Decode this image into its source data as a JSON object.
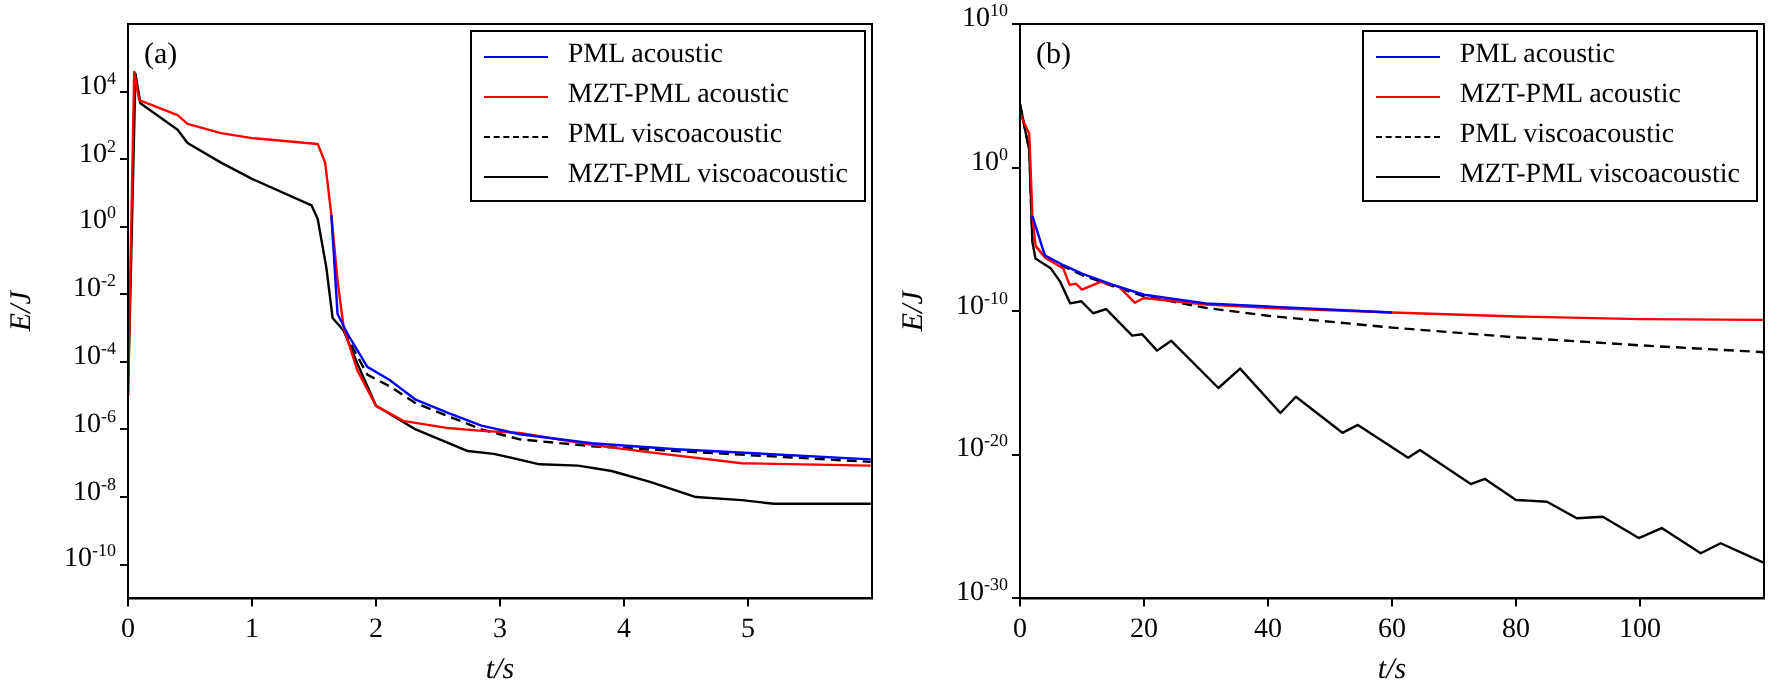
{
  "chart_data": [
    {
      "type": "line",
      "xlabel": "t/s",
      "ylabel": "E/J",
      "annotations": [
        "(a)"
      ],
      "legend": "top right",
      "log": "y",
      "xlim": [
        0,
        6
      ],
      "xticks": [
        0,
        1,
        2,
        3,
        4,
        5
      ],
      "ylim": [
        1e-11,
        1000000.0
      ],
      "yticks": [
        {
          "value": 1e-10,
          "label": "10$^{-10}$"
        },
        {
          "value": 1e-08,
          "label": "10$^{-8}$"
        },
        {
          "value": 1e-06,
          "label": "10$^{-6}$"
        },
        {
          "value": 0.0001,
          "label": "10$^{-4}$"
        },
        {
          "value": 0.01,
          "label": "10$^{-2}$"
        },
        {
          "value": 1,
          "label": "10$^{0}$"
        },
        {
          "value": 100,
          "label": "10$^{2}$"
        },
        {
          "value": 10000,
          "label": "10$^{4}$"
        }
      ],
      "series": [
        {
          "name": "PML acoustic",
          "color": "#0000ff",
          "x": [
            1.64,
            1.69,
            1.77,
            1.93,
            2.11,
            2.32,
            2.58,
            2.85,
            3.16,
            3.74,
            4.42,
            5.99
          ],
          "values": [
            2.2,
            0.0026,
            0.00068,
            7.1e-05,
            2.9e-05,
            7.6e-06,
            3.1e-06,
            1.3e-06,
            7.2e-07,
            3.9e-07,
            2.6e-07,
            1.3e-07
          ]
        },
        {
          "name": "MZT-PML acoustic",
          "color": "#ff0000",
          "x": [
            0,
            0.05,
            0.09,
            0.4,
            0.48,
            0.75,
            1.0,
            1.53,
            1.59,
            1.64,
            1.69,
            1.74,
            1.85,
            2.0,
            2.22,
            2.58,
            2.85,
            3.16,
            3.74,
            4.21,
            4.95,
            5.99
          ],
          "values": [
            1e-05,
            38000.0,
            5600.0,
            2000.0,
            1100.0,
            590,
            420,
            280,
            79,
            2.2,
            0.025,
            0.001,
            5.6e-05,
            5e-06,
            1.8e-06,
            1.1e-06,
            9.1e-07,
            7.9e-07,
            3.5e-07,
            2.1e-07,
            1e-07,
            8.5e-08
          ]
        },
        {
          "name": "PML viscoacoustic",
          "color": "#000000",
          "line_style": "dashed",
          "x": [
            1.74,
            1.93,
            2.11,
            2.32,
            2.58,
            2.85,
            3.16,
            3.74,
            4.42,
            5.99
          ],
          "values": [
            0.00083,
            4.2e-05,
            1.9e-05,
            6e-06,
            2.5e-06,
            1e-06,
            5.1e-07,
            3.2e-07,
            2.3e-07,
            1.1e-07
          ]
        },
        {
          "name": "MZT-PML viscoacoustic",
          "color": "#000000",
          "x": [
            0,
            0.06,
            0.1,
            0.4,
            0.48,
            0.75,
            1.0,
            1.48,
            1.53,
            1.6,
            1.65,
            1.74,
            1.85,
            2.0,
            2.32,
            2.74,
            2.95,
            3.32,
            3.63,
            3.9,
            4.21,
            4.58,
            4.95,
            5.21,
            5.99
          ],
          "values": [
            1e-05,
            34000.0,
            4500.0,
            740,
            300,
            79,
            26,
            4.3,
            1.7,
            0.06,
            0.002,
            0.00083,
            8.9e-05,
            5e-06,
            1e-06,
            2.3e-07,
            1.9e-07,
            9.3e-08,
            8.5e-08,
            5.9e-08,
            2.8e-08,
            1e-08,
            8.1e-09,
            6.3e-09,
            6.3e-09
          ]
        }
      ]
    },
    {
      "type": "line",
      "xlabel": "t/s",
      "ylabel": "E/J",
      "annotations": [
        "(b)"
      ],
      "legend": "top right",
      "log": "y",
      "xlim": [
        0,
        120
      ],
      "xticks": [
        0,
        20,
        40,
        60,
        80,
        100
      ],
      "ylim": [
        1e-30,
        10000000000.0
      ],
      "yticks": [
        {
          "value": 1e-30,
          "label": "10$^{-30}$"
        },
        {
          "value": 1e-20,
          "label": "10$^{-20}$"
        },
        {
          "value": 1e-10,
          "label": "10$^{-10}$"
        },
        {
          "value": 1,
          "label": "10$^{0}$"
        },
        {
          "value": 10000000000.0,
          "label": "10$^{10}$"
        }
      ],
      "series": [
        {
          "name": "PML acoustic",
          "color": "#0000ff",
          "x": [
            2,
            4,
            7,
            10,
            15,
            20,
            30,
            40,
            60
          ],
          "values": [
            0.00044,
            7.8e-07,
            1.6e-07,
            4.1e-08,
            6.8e-09,
            1.4e-09,
            3.5e-10,
            2.1e-10,
            8.1e-11
          ]
        },
        {
          "name": "MZT-PML acoustic",
          "color": "#ff0000",
          "x": [
            0,
            1,
            1.5,
            2,
            2.5,
            4,
            7,
            8,
            9,
            10,
            13,
            16,
            18.5,
            20,
            30,
            40,
            60,
            80,
            100,
            120
          ],
          "values": [
            5400.0,
            650,
            230,
            0.00044,
            3.8e-06,
            5.6e-07,
            9.3e-08,
            6.8e-09,
            8.3e-09,
            3.2e-09,
            1.1e-08,
            4.9e-09,
            3.9e-10,
            8.3e-10,
            2.9e-10,
            1.7e-10,
            8.1e-11,
            4.3e-11,
            2.8e-11,
            2.5e-11
          ]
        },
        {
          "name": "PML viscoacoustic",
          "color": "#000000",
          "line_style": "dashed",
          "x": [
            0,
            1.5,
            2,
            4,
            10,
            15,
            20,
            30,
            40,
            60,
            80,
            100,
            120
          ],
          "values": [
            26000.0,
            16,
            6.5e-06,
            5.6e-07,
            3.3e-08,
            5.5e-09,
            1.1e-09,
            1.7e-10,
            4.8e-11,
            7.2e-12,
            1.5e-12,
            4.2e-13,
            1.4e-13
          ]
        },
        {
          "name": "MZT-PML viscoacoustic",
          "color": "#000000",
          "x": [
            0,
            1.5,
            2,
            2.5,
            5,
            6.5,
            8.1,
            9.9,
            11.8,
            13.9,
            18.1,
            19.7,
            22.1,
            24.4,
            32,
            35.5,
            42,
            44.5,
            52,
            54.5,
            62.6,
            64.5,
            72.7,
            75,
            80,
            85,
            89.8,
            94,
            99.8,
            103.5,
            109.8,
            113,
            120
          ],
          "values": [
            26000.0,
            16,
            6.5e-06,
            4.6e-07,
            9.3e-08,
            1.1e-08,
            3.5e-10,
            4.9e-10,
            7.2e-11,
            1.4e-10,
            2e-12,
            2.5e-12,
            1.8e-13,
            8.7e-13,
            4.5e-16,
            1e-14,
            8.1e-18,
            1.1e-16,
            3.4e-19,
            1.2e-18,
            6.2e-21,
            2.2e-20,
            9.1e-23,
            2.1e-22,
            7.2e-24,
            5.4e-24,
            3.8e-25,
            4.8e-25,
            1.6e-26,
            7.9e-26,
            1.4e-27,
            6.9e-27,
            3e-28
          ]
        }
      ]
    }
  ]
}
